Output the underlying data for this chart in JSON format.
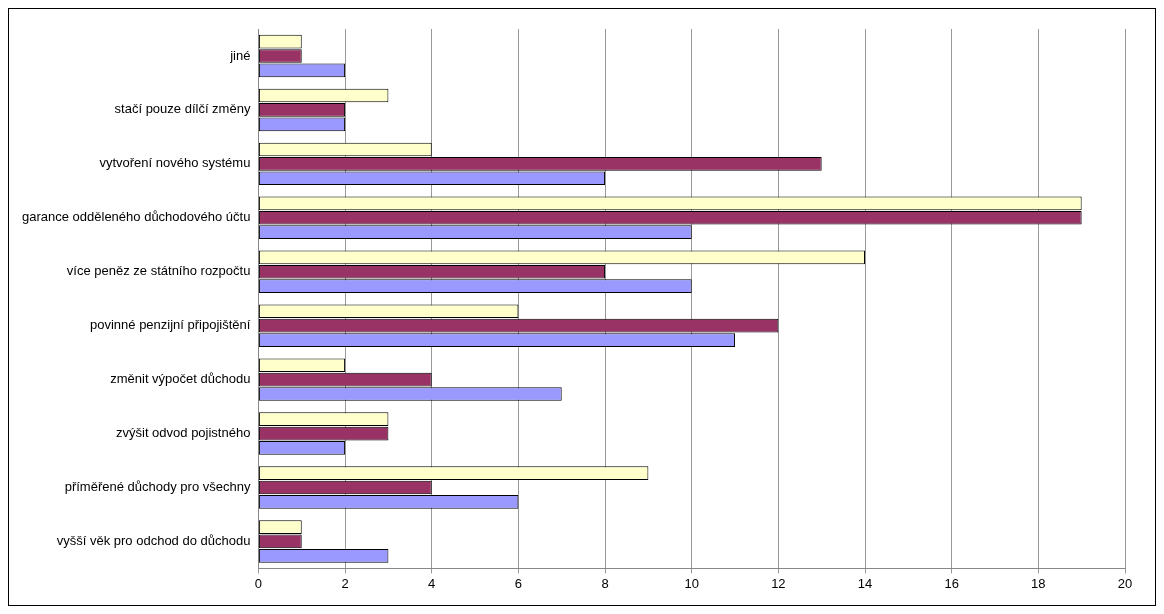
{
  "chart_data": {
    "type": "bar",
    "orientation": "horizontal",
    "categories": [
      "jiné",
      "stačí pouze dílčí změny",
      "vytvoření nového systému",
      "garance odděleného důchodového účtu",
      "více peněz ze státního rozpočtu",
      "povinné penzijní připojištění",
      "změnit výpočet důchodu",
      "zvýšit odvod pojistného",
      "příměřené důchody pro všechny",
      "vyšší věk pro odchod do důchodu"
    ],
    "series": [
      {
        "color": "#ffffcc",
        "values": [
          1,
          3,
          4,
          19,
          14,
          6,
          2,
          3,
          9,
          1
        ]
      },
      {
        "color": "#993366",
        "values": [
          1,
          2,
          13,
          19,
          8,
          12,
          4,
          3,
          4,
          1
        ]
      },
      {
        "color": "#9999ff",
        "values": [
          2,
          2,
          8,
          10,
          10,
          11,
          7,
          2,
          6,
          3
        ]
      }
    ],
    "xlim": [
      0,
      20
    ],
    "xticks": [
      0,
      2,
      4,
      6,
      8,
      10,
      12,
      14,
      16,
      18,
      20
    ],
    "grid": "x",
    "legend": false
  }
}
